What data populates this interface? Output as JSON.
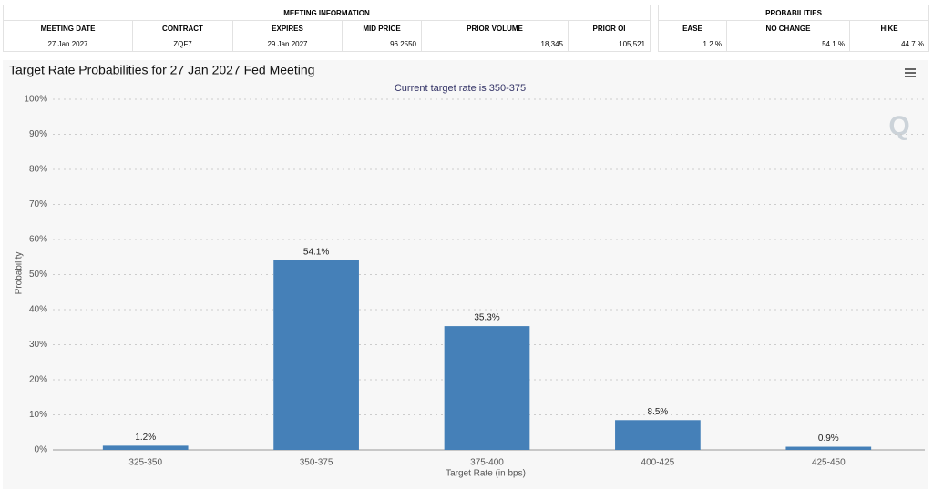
{
  "meeting_information": {
    "title": "MEETING INFORMATION",
    "headers": [
      "MEETING DATE",
      "CONTRACT",
      "EXPIRES",
      "MID PRICE",
      "PRIOR VOLUME",
      "PRIOR OI"
    ],
    "row": [
      "27 Jan 2027",
      "ZQF7",
      "29 Jan 2027",
      "96.2550",
      "18,345",
      "105,521"
    ]
  },
  "probabilities": {
    "title": "PROBABILITIES",
    "headers": [
      "EASE",
      "NO CHANGE",
      "HIKE"
    ],
    "row": [
      "1.2 %",
      "54.1 %",
      "44.7 %"
    ]
  },
  "chart_data": {
    "type": "bar",
    "title": "Target Rate Probabilities for 27 Jan 2027 Fed Meeting",
    "subtitle": "Current target rate is 350-375",
    "x_label": "Target Rate (in bps)",
    "y_label": "Probability",
    "categories": [
      "325-350",
      "350-375",
      "375-400",
      "400-425",
      "425-450"
    ],
    "values": [
      1.2,
      54.1,
      35.3,
      8.5,
      0.9
    ],
    "value_labels": [
      "1.2%",
      "54.1%",
      "35.3%",
      "8.5%",
      "0.9%"
    ],
    "color": "#4580b8",
    "ylim": [
      0,
      100
    ],
    "yticks": [
      {
        "value": 0,
        "label": "0%"
      },
      {
        "value": 10,
        "label": "10%"
      },
      {
        "value": 20,
        "label": "20%"
      },
      {
        "value": 30,
        "label": "30%"
      },
      {
        "value": 40,
        "label": "40%"
      },
      {
        "value": 50,
        "label": "50%"
      },
      {
        "value": 60,
        "label": "60%"
      },
      {
        "value": 70,
        "label": "70%"
      },
      {
        "value": 80,
        "label": "80%"
      },
      {
        "value": 90,
        "label": "90%"
      },
      {
        "value": 100,
        "label": "100%"
      }
    ],
    "grid": true
  }
}
